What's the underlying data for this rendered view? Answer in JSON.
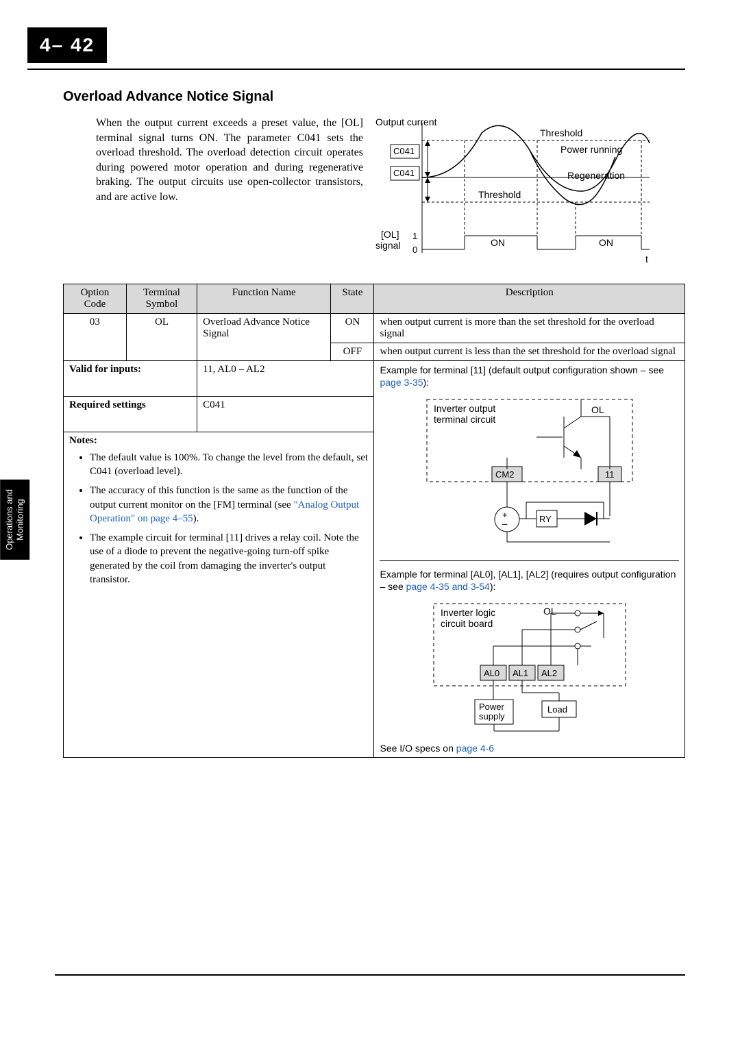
{
  "page_number": "4– 42",
  "side_tab": "Operations and\nMonitoring",
  "section_title": "Overload Advance Notice Signal",
  "intro": "When the output current exceeds a preset value, the [OL] terminal signal turns ON. The parameter C041 sets the overload threshold. The overload detection circuit operates during powered motor operation and during regenerative braking. The output circuits use open-collector transistors, and are active low.",
  "timing_diagram": {
    "labels": {
      "output_current": "Output\ncurrent",
      "c041": "C041",
      "threshold_top": "Threshold",
      "threshold_mid": "Threshold",
      "power_running": "Power running",
      "regeneration": "Regeneration",
      "ol_signal": "[OL]\nsignal",
      "one": "1",
      "zero": "0",
      "on": "ON",
      "t": "t"
    }
  },
  "table": {
    "headers": {
      "option_code": "Option\nCode",
      "terminal_symbol": "Terminal\nSymbol",
      "function_name": "Function Name",
      "state": "State",
      "description": "Description"
    },
    "row": {
      "option_code": "03",
      "terminal_symbol": "OL",
      "function_name": "Overload Advance Notice Signal",
      "state_on": "ON",
      "desc_on": "when output current is more than the set threshold for the overload signal",
      "state_off": "OFF",
      "desc_off": "when output current is less than the set threshold for the overload signal"
    },
    "valid_for_inputs_label": "Valid for inputs:",
    "valid_for_inputs_value": "11, AL0 – AL2",
    "required_settings_label": "Required settings",
    "required_settings_value": "C041",
    "notes_header": "Notes:",
    "notes": [
      "The default value is 100%. To change the level from the default, set C041 (overload level).",
      "The accuracy of this function is the same as the function of the output current monitor on the [FM] terminal (see ",
      "The example circuit for terminal [11] drives a relay coil. Note the use of a diode to prevent the negative-going turn-off spike generated by the coil from damaging the inverter's output transistor."
    ],
    "note2_link": "\"Analog Output Operation\" on page 4–55",
    "note2_tail": ").",
    "example_11_text": "Example for terminal [11] (default output configuration shown – see ",
    "example_11_link": "page 3-35",
    "example_11_tail": "):",
    "example_al_text": "Example for terminal [AL0], [AL1], [AL2] (requires output configuration – see ",
    "example_al_link": "page 4-35 and 3-54",
    "example_al_tail": "):",
    "see_io_text": "See I/O specs on ",
    "see_io_link": "page 4-6"
  },
  "circuit1": {
    "title": "Inverter output\nterminal circuit",
    "ol": "OL",
    "cm2": "CM2",
    "t11": "11",
    "ry": "RY",
    "plus": "+",
    "minus": "–"
  },
  "circuit2": {
    "title": "Inverter logic\ncircuit board",
    "ol": "OL",
    "al0": "AL0",
    "al1": "AL1",
    "al2": "AL2",
    "power": "Power\nsupply",
    "load": "Load"
  },
  "colors": {
    "link": "#1a5fb4",
    "header_bg": "#d9d9d9"
  }
}
